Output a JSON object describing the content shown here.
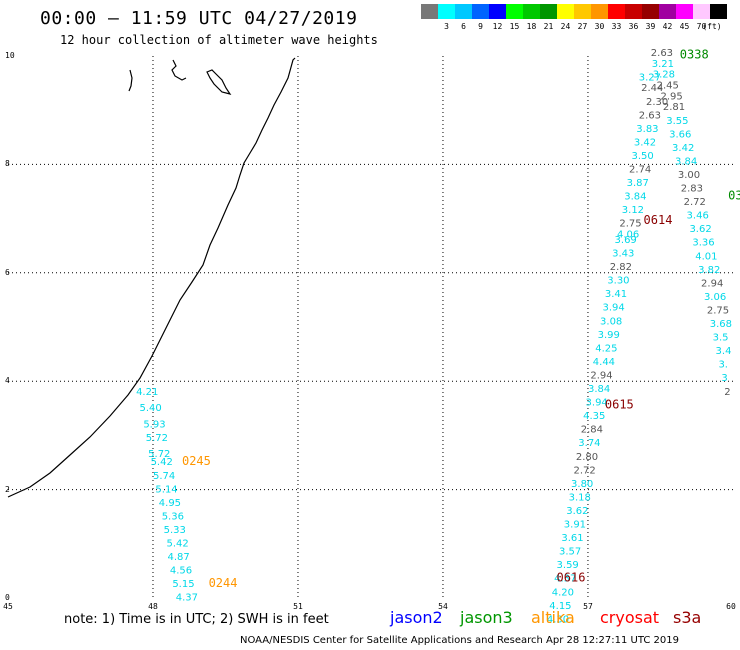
{
  "header": {
    "title": "00:00 – 11:59 UTC 04/27/2019",
    "subtitle": "12 hour collection of altimeter wave heights"
  },
  "legend": {
    "unit": "(ft)",
    "items": [
      {
        "color": "#787878",
        "label": ""
      },
      {
        "color": "#00ffff",
        "label": "3"
      },
      {
        "color": "#00c8ff",
        "label": "6"
      },
      {
        "color": "#0064ff",
        "label": "9"
      },
      {
        "color": "#0000ff",
        "label": "12"
      },
      {
        "color": "#00ff00",
        "label": "15"
      },
      {
        "color": "#00c800",
        "label": "18"
      },
      {
        "color": "#009600",
        "label": "21"
      },
      {
        "color": "#ffff00",
        "label": "24"
      },
      {
        "color": "#ffc800",
        "label": "27"
      },
      {
        "color": "#ff9600",
        "label": "30"
      },
      {
        "color": "#ff0000",
        "label": "33"
      },
      {
        "color": "#c80000",
        "label": "36"
      },
      {
        "color": "#960000",
        "label": "39"
      },
      {
        "color": "#a000a0",
        "label": "42"
      },
      {
        "color": "#ff00ff",
        "label": "45"
      },
      {
        "color": "#ffc8ff",
        "label": "70"
      },
      {
        "color": "#000000",
        "label": ""
      }
    ]
  },
  "axes": {
    "y_ticks": [
      "10",
      "8",
      "6",
      "4",
      "2",
      "0"
    ],
    "x_ticks": [
      "45",
      "48",
      "51",
      "54",
      "57",
      "60"
    ]
  },
  "footer": {
    "note": "note: 1) Time is in UTC; 2) SWH is in feet",
    "satellites": [
      {
        "name": "jason2",
        "color": "#0000ff"
      },
      {
        "name": "jason3",
        "color": "#009600"
      },
      {
        "name": "altika",
        "color": "#ff9600"
      },
      {
        "name": "cryosat",
        "color": "#ff0000"
      },
      {
        "name": "s3a",
        "color": "#960000"
      }
    ],
    "credit": "NOAA/NESDIS Center for Satellite Applications and Research   Apr 28 12:27:11 UTC 2019"
  },
  "colors": {
    "cyan": "#00d8e8",
    "gray": "#555555",
    "altika": "#ff9600",
    "jason3": "#008a00",
    "s3a": "#8a0000"
  },
  "map_data": {
    "time_labels": [
      {
        "text": "0245",
        "lon": 48.6,
        "lat": 2.45,
        "color": "altika"
      },
      {
        "text": "0244",
        "lon": 49.15,
        "lat": 0.2,
        "color": "altika"
      },
      {
        "text": "0338",
        "lon": 58.9,
        "lat": 9.95,
        "color": "jason3"
      },
      {
        "text": "03",
        "lon": 59.9,
        "lat": 7.35,
        "color": "jason3"
      },
      {
        "text": "0614",
        "lon": 58.15,
        "lat": 6.9,
        "color": "s3a"
      },
      {
        "text": "0615",
        "lon": 57.35,
        "lat": 3.5,
        "color": "s3a"
      },
      {
        "text": "0616",
        "lon": 56.35,
        "lat": 0.3,
        "color": "s3a"
      }
    ],
    "tracks": [
      {
        "name": "altika-track",
        "color": "cyan",
        "points": [
          [
            "4.21",
            47.65,
            3.75
          ],
          [
            "5.40",
            47.72,
            3.45
          ],
          [
            "5.93",
            47.8,
            3.15
          ],
          [
            "5.72",
            47.85,
            2.9
          ],
          [
            "5.72",
            47.9,
            2.6
          ],
          [
            "5.42",
            47.95,
            2.45
          ],
          [
            "5.74",
            48.0,
            2.2
          ],
          [
            "5.14",
            48.05,
            1.95
          ],
          [
            "4.95",
            48.12,
            1.7
          ],
          [
            "5.36",
            48.18,
            1.45
          ],
          [
            "5.33",
            48.22,
            1.2
          ],
          [
            "5.42",
            48.28,
            0.95
          ],
          [
            "4.87",
            48.3,
            0.7
          ],
          [
            "4.56",
            48.35,
            0.45
          ],
          [
            "5.15",
            48.4,
            0.2
          ],
          [
            "4.37",
            48.47,
            -0.05
          ]
        ]
      },
      {
        "name": "s3a-track",
        "color": "mixed",
        "points": [
          [
            "3.27",
            58.05,
            9.55,
            "cyan"
          ],
          [
            "2.44",
            58.1,
            9.35,
            "gray"
          ],
          [
            "2.30",
            58.2,
            9.1,
            "gray"
          ],
          [
            "2.63",
            58.05,
            8.85,
            "gray"
          ],
          [
            "3.83",
            58.0,
            8.6,
            "cyan"
          ],
          [
            "3.42",
            57.95,
            8.35,
            "cyan"
          ],
          [
            "3.50",
            57.9,
            8.1,
            "cyan"
          ],
          [
            "2.74",
            57.85,
            7.85,
            "gray"
          ],
          [
            "3.87",
            57.8,
            7.6,
            "cyan"
          ],
          [
            "3.84",
            57.75,
            7.35,
            "cyan"
          ],
          [
            "3.12",
            57.7,
            7.1,
            "cyan"
          ],
          [
            "2.75",
            57.65,
            6.85,
            "gray"
          ],
          [
            "4.06",
            57.6,
            6.65,
            "cyan"
          ],
          [
            "3.69",
            57.55,
            6.55,
            "cyan"
          ],
          [
            "3.43",
            57.5,
            6.3,
            "cyan"
          ],
          [
            "2.82",
            57.45,
            6.05,
            "gray"
          ],
          [
            "3.30",
            57.4,
            5.8,
            "cyan"
          ],
          [
            "3.41",
            57.35,
            5.55,
            "cyan"
          ],
          [
            "3.94",
            57.3,
            5.3,
            "cyan"
          ],
          [
            "3.08",
            57.25,
            5.05,
            "cyan"
          ],
          [
            "3.99",
            57.2,
            4.8,
            "cyan"
          ],
          [
            "4.25",
            57.15,
            4.55,
            "cyan"
          ],
          [
            "4.44",
            57.1,
            4.3,
            "cyan"
          ],
          [
            "2.94",
            57.05,
            4.05,
            "gray"
          ],
          [
            "3.84",
            57.0,
            3.8,
            "cyan"
          ],
          [
            "3.94",
            56.95,
            3.55,
            "cyan"
          ],
          [
            "4.35",
            56.9,
            3.3,
            "cyan"
          ],
          [
            "2.84",
            56.85,
            3.05,
            "gray"
          ],
          [
            "3.74",
            56.8,
            2.8,
            "cyan"
          ],
          [
            "2.80",
            56.75,
            2.55,
            "gray"
          ],
          [
            "2.72",
            56.7,
            2.3,
            "gray"
          ],
          [
            "3.80",
            56.65,
            2.05,
            "cyan"
          ],
          [
            "3.18",
            56.6,
            1.8,
            "cyan"
          ],
          [
            "3.62",
            56.55,
            1.55,
            "cyan"
          ],
          [
            "3.91",
            56.5,
            1.3,
            "cyan"
          ],
          [
            "3.61",
            56.45,
            1.05,
            "cyan"
          ],
          [
            "3.57",
            56.4,
            0.8,
            "cyan"
          ],
          [
            "3.59",
            56.35,
            0.55,
            "cyan"
          ],
          [
            "4.37",
            56.3,
            0.3,
            "cyan"
          ],
          [
            "4.20",
            56.25,
            0.05,
            "cyan"
          ],
          [
            "4.15",
            56.2,
            -0.2,
            "cyan"
          ],
          [
            "4.30",
            56.15,
            -0.45,
            "cyan"
          ]
        ]
      },
      {
        "name": "jason3-track",
        "color": "mixed",
        "points": [
          [
            "2.63",
            58.3,
            10.0,
            "gray"
          ],
          [
            "3.21",
            58.32,
            9.8,
            "cyan"
          ],
          [
            "3.28",
            58.34,
            9.6,
            "cyan"
          ],
          [
            "2.45",
            58.42,
            9.4,
            "gray"
          ],
          [
            "2.95",
            58.5,
            9.2,
            "gray"
          ],
          [
            "2.81",
            58.55,
            9.0,
            "gray"
          ],
          [
            "3.55",
            58.62,
            8.75,
            "cyan"
          ],
          [
            "3.66",
            58.68,
            8.5,
            "cyan"
          ],
          [
            "3.42",
            58.74,
            8.25,
            "cyan"
          ],
          [
            "3.84",
            58.8,
            8.0,
            "cyan"
          ],
          [
            "3.00",
            58.86,
            7.75,
            "gray"
          ],
          [
            "2.83",
            58.92,
            7.5,
            "gray"
          ],
          [
            "2.72",
            58.98,
            7.25,
            "gray"
          ],
          [
            "3.46",
            59.04,
            7.0,
            "cyan"
          ],
          [
            "3.62",
            59.1,
            6.75,
            "cyan"
          ],
          [
            "3.36",
            59.16,
            6.5,
            "cyan"
          ],
          [
            "4.01",
            59.22,
            6.25,
            "cyan"
          ],
          [
            "3.82",
            59.28,
            6.0,
            "cyan"
          ],
          [
            "2.94",
            59.34,
            5.75,
            "gray"
          ],
          [
            "3.06",
            59.4,
            5.5,
            "cyan"
          ],
          [
            "2.75",
            59.46,
            5.25,
            "gray"
          ],
          [
            "3.68",
            59.52,
            5.0,
            "cyan"
          ],
          [
            "3.5",
            59.58,
            4.75,
            "cyan"
          ],
          [
            "3.4",
            59.64,
            4.5,
            "cyan"
          ],
          [
            "3.",
            59.7,
            4.25,
            "cyan"
          ],
          [
            "3",
            59.76,
            4.0,
            "cyan"
          ],
          [
            "2",
            59.82,
            3.75,
            "gray"
          ]
        ]
      }
    ]
  }
}
